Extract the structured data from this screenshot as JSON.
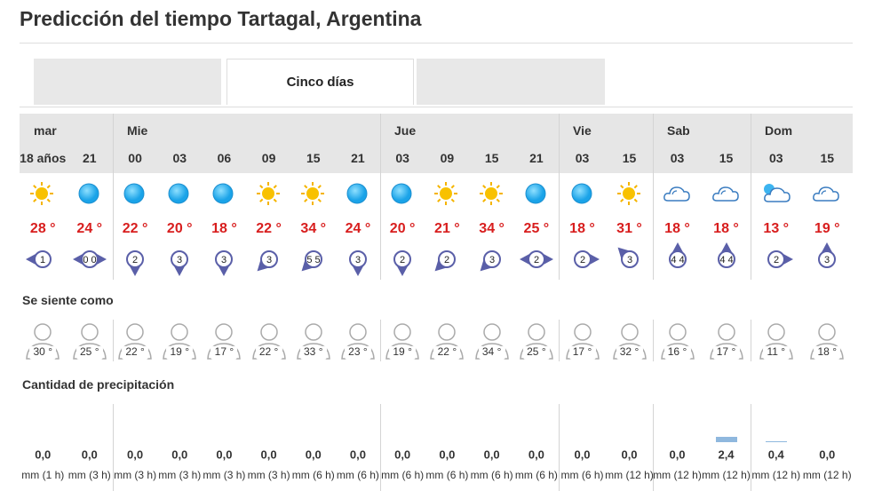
{
  "header": {
    "title": "Predicción del tiempo Tartagal, Argentina"
  },
  "tabs": {
    "active": "Cinco días"
  },
  "forecast": {
    "feels_label": "Se siente como",
    "precip_label": "Cantidad de precipitación",
    "days": [
      {
        "name": "mar",
        "hours": [
          {
            "time": "18 años",
            "temp": "28 °",
            "wind": "1",
            "feels": "30 °",
            "precip": "0,0",
            "period": "mm (1 h)"
          },
          {
            "time": "21",
            "temp": "24 °",
            "wind": "0 0",
            "feels": "25 °",
            "precip": "0,0",
            "period": "mm (3 h)"
          }
        ]
      },
      {
        "name": "Mie",
        "hours": [
          {
            "time": "00",
            "temp": "22 °",
            "wind": "2",
            "feels": "22 °",
            "precip": "0,0",
            "period": "mm (3 h)"
          },
          {
            "time": "03",
            "temp": "20 °",
            "wind": "3",
            "feels": "19 °",
            "precip": "0,0",
            "period": "mm (3 h)"
          },
          {
            "time": "06",
            "temp": "18 °",
            "wind": "3",
            "feels": "17 °",
            "precip": "0,0",
            "period": "mm (3 h)"
          },
          {
            "time": "09",
            "temp": "22 °",
            "wind": "3",
            "feels": "22 °",
            "precip": "0,0",
            "period": "mm (3 h)"
          },
          {
            "time": "15",
            "temp": "34 °",
            "wind": "5 5",
            "feels": "33 °",
            "precip": "0,0",
            "period": "mm (6 h)"
          },
          {
            "time": "21",
            "temp": "24 °",
            "wind": "3",
            "feels": "23 °",
            "precip": "0,0",
            "period": "mm (6 h)"
          }
        ]
      },
      {
        "name": "Jue",
        "hours": [
          {
            "time": "03",
            "temp": "20 °",
            "wind": "2",
            "feels": "19 °",
            "precip": "0,0",
            "period": "mm (6 h)"
          },
          {
            "time": "09",
            "temp": "21 °",
            "wind": "2",
            "feels": "22 °",
            "precip": "0,0",
            "period": "mm (6 h)"
          },
          {
            "time": "15",
            "temp": "34 °",
            "wind": "3",
            "feels": "34 °",
            "precip": "0,0",
            "period": "mm (6 h)"
          },
          {
            "time": "21",
            "temp": "25 °",
            "wind": "2",
            "feels": "25 °",
            "precip": "0,0",
            "period": "mm (6 h)"
          }
        ]
      },
      {
        "name": "Vie",
        "hours": [
          {
            "time": "03",
            "temp": "18 °",
            "wind": "2",
            "feels": "17 °",
            "precip": "0,0",
            "period": "mm (6 h)"
          },
          {
            "time": "15",
            "temp": "31 °",
            "wind": "3",
            "feels": "32 °",
            "precip": "0,0",
            "period": "mm (12 h)"
          }
        ]
      },
      {
        "name": "Sab",
        "hours": [
          {
            "time": "03",
            "temp": "18 °",
            "wind": "4 4",
            "feels": "16 °",
            "precip": "0,0",
            "period": "mm (12 h)"
          },
          {
            "time": "15",
            "temp": "18 °",
            "wind": "4 4",
            "feels": "17 °",
            "precip": "2,4",
            "period": "mm (12 h)"
          }
        ]
      },
      {
        "name": "Dom",
        "hours": [
          {
            "time": "03",
            "temp": "13 °",
            "wind": "2",
            "feels": "11 °",
            "precip": "0,4",
            "period": "mm (12 h)"
          },
          {
            "time": "15",
            "temp": "19 °",
            "wind": "3",
            "feels": "18 °",
            "precip": "0,0",
            "period": "mm (12 h)"
          }
        ]
      }
    ]
  }
}
